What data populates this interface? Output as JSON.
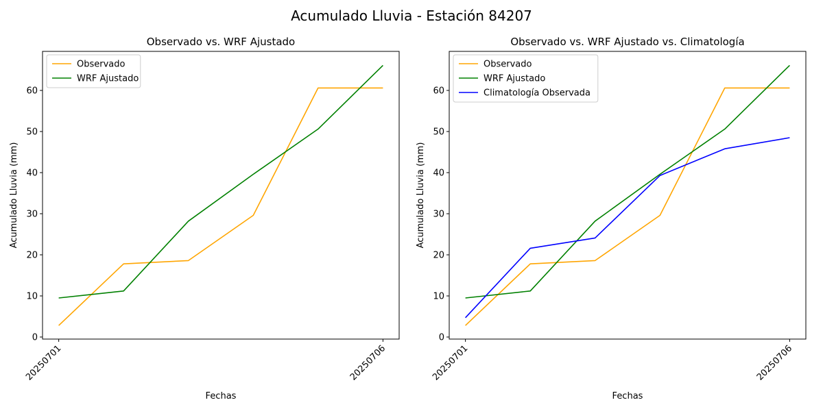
{
  "figure": {
    "suptitle": "Acumulado Lluvia - Estación 84207"
  },
  "colors": {
    "observado": "#ffa500",
    "wrf": "#008000",
    "climatologia": "#0000ff"
  },
  "chart_data": [
    {
      "type": "line",
      "title": "Observado vs. WRF Ajustado",
      "xlabel": "Fechas",
      "ylabel": "Acumulado Lluvia (mm)",
      "x": [
        "20250701",
        "20250702",
        "20250703",
        "20250704",
        "20250705",
        "20250706"
      ],
      "x_ticks_shown": [
        "20250701",
        "20250706"
      ],
      "y_ticks": [
        0,
        10,
        20,
        30,
        40,
        50,
        60
      ],
      "ylim": [
        -0.5,
        69.5
      ],
      "legend": "top-left",
      "series": [
        {
          "name": "Observado",
          "color": "#ffa500",
          "values": [
            2.8,
            17.8,
            18.6,
            29.6,
            60.6,
            60.6
          ]
        },
        {
          "name": "WRF Ajustado",
          "color": "#008000",
          "values": [
            9.5,
            11.2,
            28.2,
            39.6,
            50.6,
            66.1
          ]
        }
      ]
    },
    {
      "type": "line",
      "title": "Observado vs. WRF Ajustado vs. Climatología",
      "xlabel": "Fechas",
      "ylabel": "Acumulado Lluvia (mm)",
      "x": [
        "20250701",
        "20250702",
        "20250703",
        "20250704",
        "20250705",
        "20250706"
      ],
      "x_ticks_shown": [
        "20250701",
        "20250706"
      ],
      "y_ticks": [
        0,
        10,
        20,
        30,
        40,
        50,
        60
      ],
      "ylim": [
        -0.5,
        69.5
      ],
      "legend": "top-left",
      "series": [
        {
          "name": "Observado",
          "color": "#ffa500",
          "values": [
            2.8,
            17.8,
            18.6,
            29.6,
            60.6,
            60.6
          ]
        },
        {
          "name": "WRF Ajustado",
          "color": "#008000",
          "values": [
            9.5,
            11.2,
            28.2,
            39.6,
            50.6,
            66.1
          ]
        },
        {
          "name": "Climatología Observada",
          "color": "#0000ff",
          "values": [
            4.7,
            21.6,
            24.1,
            39.3,
            45.8,
            48.5
          ]
        }
      ]
    }
  ]
}
